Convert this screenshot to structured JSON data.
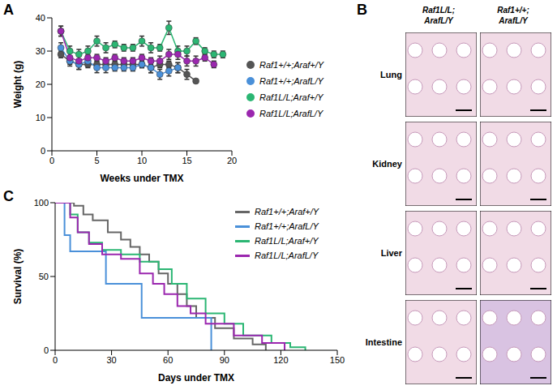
{
  "chart_data": [
    {
      "panel": "A",
      "type": "line",
      "x_label": "Weeks under TMX",
      "y_label": "Weight (g)",
      "x": [
        1,
        2,
        3,
        4,
        5,
        6,
        7,
        8,
        9,
        10,
        11,
        12,
        13,
        14,
        15,
        16,
        17,
        18,
        19
      ],
      "xlim": [
        0,
        20
      ],
      "xticks": [
        0,
        5,
        10,
        15,
        20
      ],
      "ylim": [
        0,
        40
      ],
      "yticks": [
        0,
        10,
        20,
        30,
        40
      ],
      "legend": "right",
      "marker": "circle",
      "series": [
        {
          "name": "Raf1+/+;Araf+/Y",
          "color": "#555555",
          "values": [
            29,
            27,
            26,
            26,
            26,
            26,
            26,
            26,
            26,
            26,
            25,
            26,
            26,
            25,
            23,
            21,
            null,
            null,
            null
          ],
          "errors": [
            1,
            1,
            1.5,
            1,
            1,
            1,
            1,
            1,
            1,
            1,
            1.5,
            1,
            1,
            1.5,
            1.5,
            0,
            null,
            null,
            null
          ]
        },
        {
          "name": "Raf1+/+;ArafL/Y",
          "color": "#4a90d9",
          "values": [
            31,
            27,
            26,
            27,
            25,
            25,
            25,
            25,
            25,
            26,
            25,
            23,
            24,
            25,
            null,
            null,
            null,
            null,
            null
          ],
          "errors": [
            1.5,
            1.5,
            1.5,
            1.5,
            1.5,
            1.5,
            1,
            1,
            1,
            1,
            1.5,
            1.5,
            1.5,
            1.5,
            null,
            null,
            null,
            null,
            null
          ]
        },
        {
          "name": "Raf1L/L;Araf+/Y",
          "color": "#2bb673",
          "values": [
            36,
            30,
            29,
            30,
            33,
            31,
            32,
            31,
            31,
            33,
            31,
            31,
            37,
            30,
            30,
            33,
            30,
            29,
            29
          ],
          "errors": [
            1.5,
            1.5,
            1.5,
            1.5,
            1.5,
            1.5,
            1,
            1,
            1,
            1.5,
            1.5,
            1,
            2,
            1.5,
            1.5,
            1,
            1,
            1,
            1
          ]
        },
        {
          "name": "Raf1L/L;ArafL/Y",
          "color": "#9b27af",
          "values": [
            36,
            28,
            27,
            28,
            28,
            27,
            28,
            27,
            27,
            28,
            27,
            27,
            29,
            29,
            27,
            27,
            28,
            26,
            null
          ],
          "errors": [
            1.5,
            1.5,
            1.5,
            1,
            1,
            1,
            1,
            1,
            1,
            1,
            1,
            1.5,
            1.5,
            1.5,
            1.5,
            1.5,
            1,
            1,
            null
          ]
        }
      ]
    },
    {
      "panel": "C",
      "type": "line",
      "line_style": "step",
      "x_label": "Days under TMX",
      "y_label": "Survival (%)",
      "xlim": [
        0,
        150
      ],
      "xticks": [
        0,
        30,
        60,
        90,
        120,
        150
      ],
      "ylim": [
        0,
        100
      ],
      "yticks": [
        0,
        50,
        100
      ],
      "legend": "upper right",
      "series": [
        {
          "name": "Raf1+/+;Araf+/Y",
          "color": "#666666",
          "x": [
            0,
            10,
            15,
            20,
            28,
            35,
            40,
            45,
            50,
            55,
            60,
            65,
            70,
            75,
            85,
            95,
            105,
            112
          ],
          "values": [
            100,
            98,
            92,
            88,
            80,
            75,
            70,
            65,
            60,
            52,
            45,
            38,
            30,
            22,
            15,
            8,
            4,
            0
          ]
        },
        {
          "name": "Raf1+/+;ArafL/Y",
          "color": "#4a90d9",
          "x": [
            0,
            5,
            8,
            22,
            27,
            44,
            46,
            82,
            83
          ],
          "values": [
            100,
            78,
            67,
            67,
            45,
            45,
            22,
            22,
            0
          ]
        },
        {
          "name": "Raf1L/L;Araf+/Y",
          "color": "#2bb673",
          "x": [
            0,
            8,
            12,
            18,
            25,
            35,
            45,
            55,
            62,
            70,
            80,
            90,
            100,
            115,
            125,
            133
          ],
          "values": [
            100,
            92,
            80,
            73,
            68,
            65,
            60,
            55,
            45,
            35,
            25,
            18,
            10,
            5,
            2,
            0
          ]
        },
        {
          "name": "Raf1L/L;ArafL/Y",
          "color": "#9b27af",
          "x": [
            0,
            8,
            12,
            18,
            25,
            35,
            45,
            52,
            58,
            65,
            72,
            80,
            95,
            110,
            122
          ],
          "values": [
            100,
            90,
            80,
            72,
            65,
            62,
            52,
            45,
            38,
            30,
            25,
            18,
            10,
            5,
            0
          ]
        }
      ]
    }
  ],
  "histology": {
    "panel": "B",
    "columns": [
      "Raf1L/L;ArafL/Y",
      "Raf1+/+;ArafL/Y"
    ],
    "rows": [
      "Lung",
      "Kidney",
      "Liver",
      "Intestine"
    ]
  }
}
